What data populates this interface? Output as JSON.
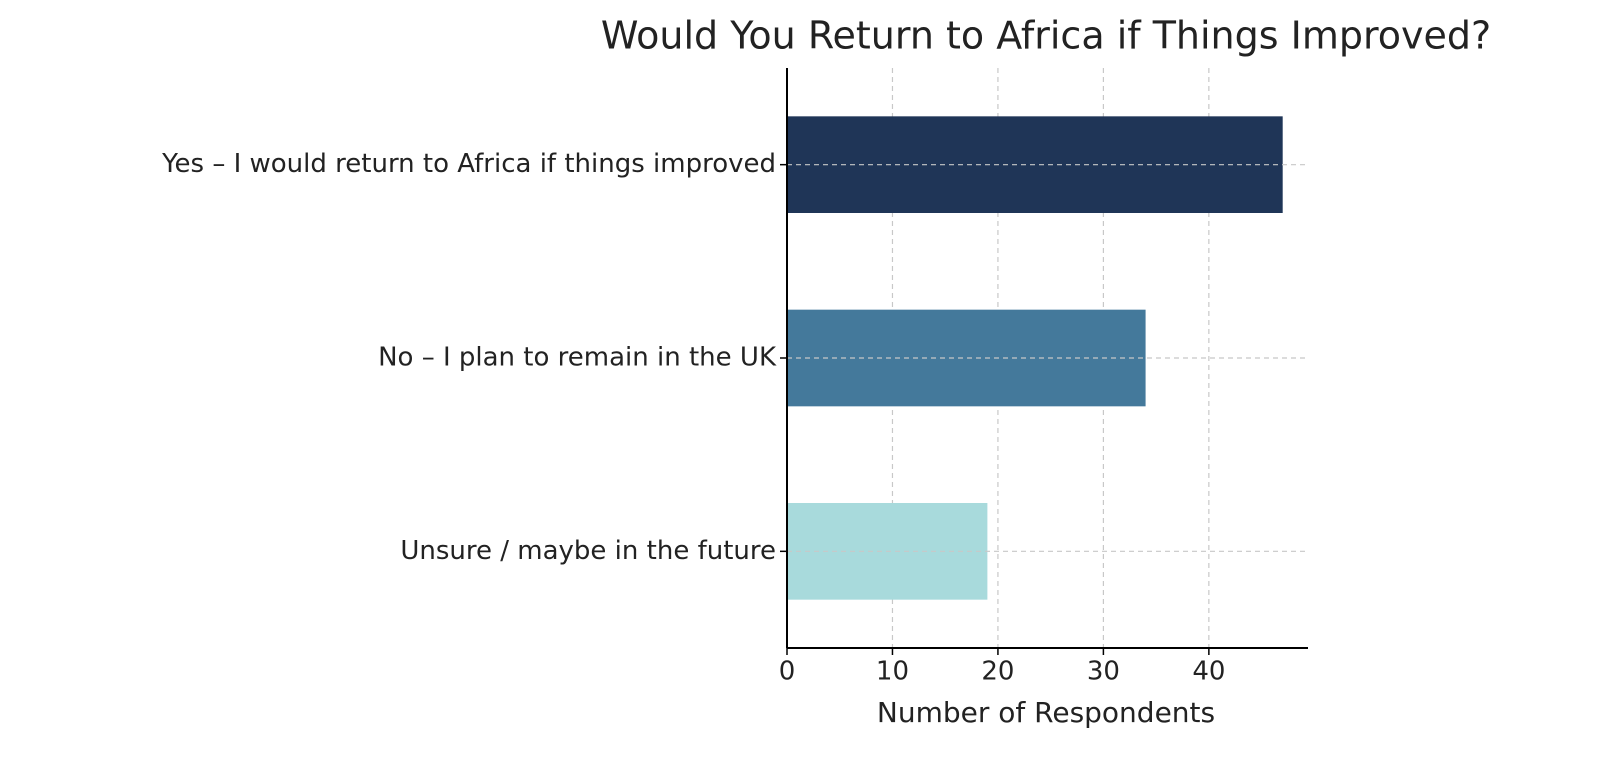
{
  "chart_data": {
    "type": "barh",
    "title": "Would You Return to Africa if Things Improved?",
    "x_label": "Number of Respondents",
    "categories": [
      "Yes – I would return to Africa if things improved",
      "No – I plan to remain in the UK",
      "Unsure / maybe in the future"
    ],
    "values": [
      47,
      34,
      19
    ],
    "colors": [
      "#1f3557",
      "#44799b",
      "#a8dadc"
    ],
    "xlim": [
      0,
      49.4
    ],
    "xticks": [
      0,
      10,
      20,
      30,
      40
    ],
    "grid": true
  }
}
